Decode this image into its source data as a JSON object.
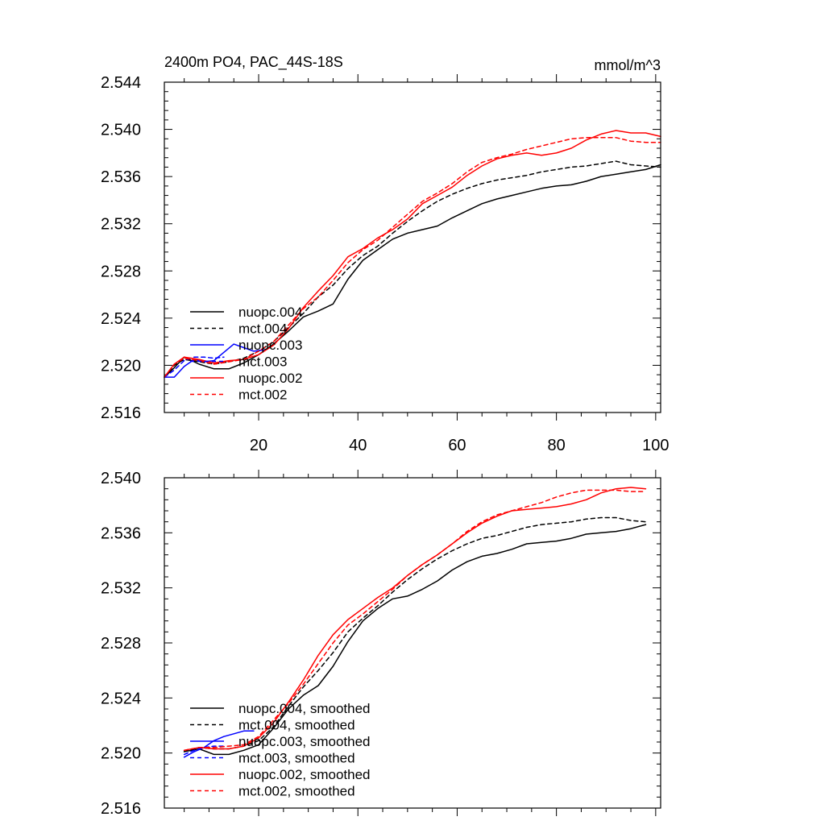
{
  "chart_data": [
    {
      "type": "line",
      "title": "2400m PO4, PAC_44S-18S",
      "units": "mmol/m^3",
      "xlim": [
        1,
        101
      ],
      "ylim": [
        2.516,
        2.544
      ],
      "x_ticks": [
        20,
        40,
        60,
        80,
        100
      ],
      "x_tick_labels": [
        "20",
        "40",
        "60",
        "80",
        "100"
      ],
      "y_ticks": [
        2.516,
        2.52,
        2.524,
        2.528,
        2.532,
        2.536,
        2.54,
        2.544
      ],
      "y_tick_labels": [
        "2.516",
        "2.520",
        "2.524",
        "2.528",
        "2.532",
        "2.536",
        "2.540",
        "2.544"
      ],
      "grid": false,
      "legend_position": "lower-left",
      "series": [
        {
          "name": "nuopc.004",
          "color": "#000000",
          "dash": "solid",
          "x": [
            1,
            3,
            5,
            8,
            11,
            14,
            17,
            20,
            23,
            26,
            29,
            32,
            35,
            38,
            41,
            44,
            47,
            50,
            53,
            56,
            59,
            62,
            65,
            68,
            71,
            74,
            77,
            80,
            83,
            86,
            89,
            92,
            95,
            98,
            101
          ],
          "values": [
            2.519,
            2.5198,
            2.5207,
            2.5201,
            2.5197,
            2.5197,
            2.5202,
            2.5209,
            2.5218,
            2.5229,
            2.5241,
            2.5246,
            2.5252,
            2.5273,
            2.5289,
            2.5298,
            2.5307,
            2.5312,
            2.5315,
            2.5318,
            2.5325,
            2.5331,
            2.5337,
            2.5341,
            2.5344,
            2.5347,
            2.535,
            2.5352,
            2.5353,
            2.5356,
            2.536,
            2.5362,
            2.5364,
            2.5366,
            2.537
          ]
        },
        {
          "name": "mct.004",
          "color": "#000000",
          "dash": "dashed",
          "x": [
            1,
            3,
            5,
            8,
            11,
            14,
            17,
            20,
            23,
            26,
            29,
            32,
            35,
            38,
            41,
            44,
            47,
            50,
            53,
            56,
            59,
            62,
            65,
            68,
            71,
            74,
            77,
            80,
            83,
            86,
            89,
            92,
            95,
            98,
            101
          ],
          "values": [
            2.519,
            2.52,
            2.5205,
            2.5203,
            2.5201,
            2.5203,
            2.5206,
            2.5212,
            2.522,
            2.5232,
            2.5244,
            2.5258,
            2.5268,
            2.5282,
            2.5293,
            2.5301,
            2.5312,
            2.5322,
            2.5331,
            2.5339,
            2.5345,
            2.535,
            2.5354,
            2.5357,
            2.5359,
            2.5361,
            2.5364,
            2.5366,
            2.5368,
            2.5369,
            2.5371,
            2.5373,
            2.537,
            2.5369,
            2.5368
          ]
        },
        {
          "name": "nuopc.003",
          "color": "#0000ff",
          "dash": "solid",
          "x": [
            1,
            3,
            5,
            7,
            9,
            11,
            13,
            15,
            17,
            19,
            21
          ],
          "values": [
            2.519,
            2.519,
            2.5199,
            2.5205,
            2.5203,
            2.5204,
            2.5211,
            2.5218,
            2.5215,
            2.5212,
            2.5213
          ]
        },
        {
          "name": "mct.003",
          "color": "#0000ff",
          "dash": "dashed",
          "x": [
            1,
            3,
            5,
            7,
            9,
            11,
            13
          ],
          "values": [
            2.519,
            2.5196,
            2.5204,
            2.5207,
            2.5207,
            2.5206,
            2.5207
          ]
        },
        {
          "name": "nuopc.002",
          "color": "#ff0000",
          "dash": "solid",
          "x": [
            1,
            3,
            5,
            8,
            11,
            14,
            17,
            20,
            23,
            26,
            29,
            32,
            35,
            38,
            41,
            44,
            47,
            50,
            53,
            56,
            59,
            62,
            65,
            68,
            71,
            74,
            77,
            80,
            83,
            86,
            89,
            92,
            95,
            98,
            101
          ],
          "values": [
            2.519,
            2.5201,
            2.5207,
            2.5205,
            2.5202,
            2.5204,
            2.5205,
            2.5209,
            2.5217,
            2.5231,
            2.5249,
            2.5263,
            2.5276,
            2.5292,
            2.5299,
            2.5308,
            2.5315,
            2.5324,
            2.5337,
            2.5344,
            2.5351,
            2.5361,
            2.5369,
            2.5375,
            2.5378,
            2.538,
            2.5378,
            2.538,
            2.5384,
            2.5391,
            2.5396,
            2.5399,
            2.5397,
            2.5397,
            2.5394
          ]
        },
        {
          "name": "mct.002",
          "color": "#ff0000",
          "dash": "dashed",
          "x": [
            1,
            3,
            5,
            8,
            11,
            14,
            17,
            20,
            23,
            26,
            29,
            32,
            35,
            38,
            41,
            44,
            47,
            50,
            53,
            56,
            59,
            62,
            65,
            68,
            71,
            74,
            77,
            80,
            83,
            86,
            89,
            92,
            95,
            98,
            101
          ],
          "values": [
            2.519,
            2.5201,
            2.5206,
            2.5204,
            2.5201,
            2.5203,
            2.5205,
            2.5212,
            2.522,
            2.5234,
            2.5248,
            2.5258,
            2.5272,
            2.5287,
            2.5298,
            2.5306,
            2.5317,
            2.5328,
            2.5339,
            2.5346,
            2.5354,
            2.5364,
            2.5372,
            2.5376,
            2.5379,
            2.5383,
            2.5386,
            2.5389,
            2.5392,
            2.5393,
            2.5393,
            2.5393,
            2.539,
            2.5389,
            2.5389
          ]
        }
      ]
    },
    {
      "type": "line",
      "title": "",
      "xlim": [
        1,
        101
      ],
      "ylim": [
        2.516,
        2.54
      ],
      "x_ticks": [
        20,
        40,
        60,
        80,
        100
      ],
      "x_tick_labels": [],
      "y_ticks": [
        2.516,
        2.52,
        2.524,
        2.528,
        2.532,
        2.536,
        2.54
      ],
      "y_tick_labels": [
        "2.516",
        "2.520",
        "2.524",
        "2.528",
        "2.532",
        "2.536",
        "2.540"
      ],
      "grid": false,
      "legend_position": "lower-left",
      "series": [
        {
          "name": "nuopc.004, smoothed",
          "color": "#000000",
          "dash": "solid",
          "x": [
            5,
            8,
            11,
            14,
            17,
            20,
            23,
            26,
            29,
            32,
            35,
            38,
            41,
            44,
            47,
            50,
            53,
            56,
            59,
            62,
            65,
            68,
            71,
            74,
            77,
            80,
            83,
            86,
            89,
            92,
            95,
            98
          ],
          "values": [
            2.5201,
            2.5203,
            2.5199,
            2.5199,
            2.5202,
            2.5206,
            2.5218,
            2.5232,
            2.5242,
            2.5249,
            2.5263,
            2.5281,
            2.5296,
            2.5305,
            2.5312,
            2.5314,
            2.5319,
            2.5325,
            2.5333,
            2.5339,
            2.5343,
            2.5345,
            2.5348,
            2.5352,
            2.5353,
            2.5354,
            2.5356,
            2.5359,
            2.536,
            2.5361,
            2.5363,
            2.5366
          ]
        },
        {
          "name": "mct.004, smoothed",
          "color": "#000000",
          "dash": "dashed",
          "x": [
            5,
            8,
            11,
            14,
            17,
            20,
            23,
            26,
            29,
            32,
            35,
            38,
            41,
            44,
            47,
            50,
            53,
            56,
            59,
            62,
            65,
            68,
            71,
            74,
            77,
            80,
            83,
            86,
            89,
            92,
            95,
            98
          ],
          "values": [
            2.5201,
            2.5204,
            2.5203,
            2.5203,
            2.5205,
            2.5209,
            2.5219,
            2.5234,
            2.5248,
            2.526,
            2.5273,
            2.5288,
            2.5298,
            2.5307,
            2.5317,
            2.5326,
            2.5334,
            2.5341,
            2.5347,
            2.5352,
            2.5356,
            2.5358,
            2.5361,
            2.5364,
            2.5366,
            2.5367,
            2.5368,
            2.537,
            2.5371,
            2.5371,
            2.5369,
            2.5368
          ]
        },
        {
          "name": "nuopc.003, smoothed",
          "color": "#0000ff",
          "dash": "solid",
          "x": [
            5,
            7,
            9,
            11,
            13,
            15,
            17,
            19
          ],
          "values": [
            2.5197,
            2.5201,
            2.5204,
            2.5209,
            2.5212,
            2.5214,
            2.5216,
            2.5216
          ]
        },
        {
          "name": "mct.003, smoothed",
          "color": "#0000ff",
          "dash": "dashed",
          "x": [
            5,
            7,
            9,
            11,
            13
          ],
          "values": [
            2.5199,
            2.5202,
            2.5204,
            2.5205,
            2.5205
          ]
        },
        {
          "name": "nuopc.002, smoothed",
          "color": "#ff0000",
          "dash": "solid",
          "x": [
            5,
            8,
            11,
            14,
            17,
            20,
            23,
            26,
            29,
            32,
            35,
            38,
            41,
            44,
            47,
            50,
            53,
            56,
            59,
            62,
            65,
            68,
            71,
            74,
            77,
            80,
            83,
            86,
            89,
            92,
            95,
            98
          ],
          "values": [
            2.5202,
            2.5204,
            2.5203,
            2.5203,
            2.5205,
            2.5211,
            2.5222,
            2.5237,
            2.5253,
            2.5271,
            2.5286,
            2.5297,
            2.5305,
            2.5313,
            2.532,
            2.5329,
            2.5337,
            2.5344,
            2.5352,
            2.536,
            2.5367,
            2.5372,
            2.5376,
            2.5377,
            2.5378,
            2.5379,
            2.5381,
            2.5384,
            2.5389,
            2.5392,
            2.5393,
            2.5392
          ]
        },
        {
          "name": "mct.002, smoothed",
          "color": "#ff0000",
          "dash": "dashed",
          "x": [
            5,
            8,
            11,
            14,
            17,
            20,
            23,
            26,
            29,
            32,
            35,
            38,
            41,
            44,
            47,
            50,
            53,
            56,
            59,
            62,
            65,
            68,
            71,
            74,
            77,
            80,
            83,
            86,
            89,
            92,
            95,
            98
          ],
          "values": [
            2.5202,
            2.5204,
            2.5204,
            2.5205,
            2.5206,
            2.5212,
            2.5224,
            2.5236,
            2.525,
            2.5265,
            2.528,
            2.5293,
            2.5301,
            2.531,
            2.5319,
            2.5329,
            2.5337,
            2.5344,
            2.5352,
            2.5361,
            2.5368,
            2.5373,
            2.5376,
            2.5379,
            2.5382,
            2.5386,
            2.5389,
            2.5391,
            2.5391,
            2.5391,
            2.539,
            2.539
          ]
        }
      ]
    }
  ]
}
